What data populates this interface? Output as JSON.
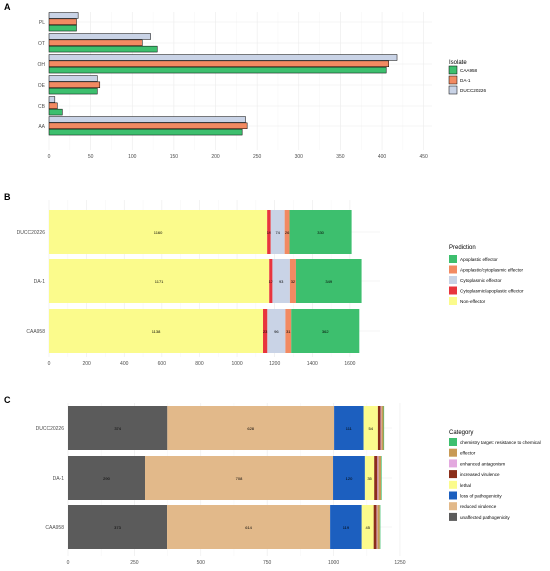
{
  "chart_data": [
    {
      "panel_label": "A",
      "type": "bar",
      "orientation": "horizontal",
      "categories": [
        "PL",
        "OT",
        "OH",
        "OE",
        "CB",
        "AA"
      ],
      "xlim": [
        0,
        460
      ],
      "xticks": [
        "0",
        "50",
        "100",
        "150",
        "200",
        "250",
        "300",
        "350",
        "400",
        "450"
      ],
      "grid": true,
      "legend_title": "Isolate",
      "legend_position": "right",
      "series": [
        {
          "name": "CAA958",
          "color": "#3dbf6e",
          "values": [
            33,
            130,
            405,
            58,
            16,
            232
          ]
        },
        {
          "name": "DA-1",
          "color": "#f28a62",
          "values": [
            33,
            112,
            408,
            61,
            10,
            238
          ]
        },
        {
          "name": "DUCC20226",
          "color": "#c9d3e6",
          "values": [
            35,
            122,
            418,
            58,
            7,
            236
          ]
        }
      ]
    },
    {
      "panel_label": "B",
      "type": "bar",
      "orientation": "horizontal",
      "stacked": true,
      "categories": [
        "DUCC20226",
        "DA-1",
        "CAA958"
      ],
      "xlim": [
        0,
        1760
      ],
      "xticks": [
        "0",
        "200",
        "400",
        "600",
        "800",
        "1000",
        "1200",
        "1400",
        "1600"
      ],
      "grid": true,
      "legend_title": "Prediction",
      "legend_position": "right",
      "series": [
        {
          "name": "Non-effector",
          "color": "#fbfb8c",
          "values": [
            1160,
            1171,
            1138
          ]
        },
        {
          "name": "Cytoplasmic/apoplastic effector",
          "color": "#e8343d",
          "values": [
            19,
            17,
            23
          ]
        },
        {
          "name": "Cytoplasmic effector",
          "color": "#c9d3e6",
          "values": [
            74,
            93,
            96
          ]
        },
        {
          "name": "Apoplastic/cytoplasmic effector",
          "color": "#f28a62",
          "values": [
            26,
            32,
            31
          ]
        },
        {
          "name": "Apoplastic effector",
          "color": "#3dbf6e",
          "values": [
            330,
            349,
            362
          ]
        }
      ],
      "data_labels": [
        [
          "1160",
          "19",
          "74",
          "26",
          "330"
        ],
        [
          "1171",
          "17",
          "93",
          "32",
          "349"
        ],
        [
          "1138",
          "23",
          "96",
          "31",
          "362"
        ]
      ]
    },
    {
      "panel_label": "C",
      "type": "bar",
      "orientation": "horizontal",
      "stacked": true,
      "categories": [
        "DUCC20226",
        "DA-1",
        "CAA958"
      ],
      "xlim": [
        0,
        1220
      ],
      "xticks": [
        "0",
        "250",
        "500",
        "750",
        "1000",
        "1250"
      ],
      "grid": true,
      "legend_title": "Category",
      "legend_position": "right",
      "series": [
        {
          "name": "unaffected pathogenicity",
          "color": "#5b5b5b",
          "values": [
            374,
            290,
            373
          ]
        },
        {
          "name": "reduced virulence",
          "color": "#e2b98a",
          "values": [
            628,
            708,
            614
          ]
        },
        {
          "name": "loss of pathogenicity",
          "color": "#1c5fbf",
          "values": [
            111,
            120,
            119
          ]
        },
        {
          "name": "lethal",
          "color": "#fbfb8c",
          "values": [
            54,
            35,
            45
          ]
        },
        {
          "name": "increased virulence",
          "color": "#8b2e1a",
          "values": [
            10,
            12,
            11
          ]
        },
        {
          "name": "enhanced antagonism",
          "color": "#e3a9df",
          "values": [
            3,
            4,
            3
          ]
        },
        {
          "name": "effector",
          "color": "#c89a55",
          "values": [
            8,
            10,
            9
          ]
        },
        {
          "name": "chemistry target: resistance to chemical",
          "color": "#3dbf6e",
          "values": [
            2,
            2,
            2
          ]
        }
      ],
      "data_labels": [
        [
          "374",
          "628",
          "111",
          "54",
          "",
          "",
          "",
          ""
        ],
        [
          "290",
          "708",
          "120",
          "35",
          "",
          "",
          "",
          ""
        ],
        [
          "373",
          "614",
          "119",
          "45",
          "",
          "",
          "",
          ""
        ]
      ]
    }
  ]
}
